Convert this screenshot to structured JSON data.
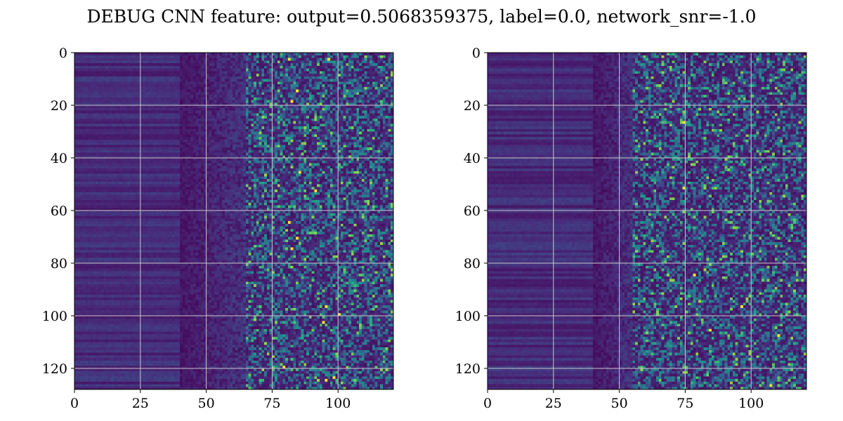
{
  "title": "DEBUG CNN feature: output=0.5068359375, label=0.0, network_snr=-1.0",
  "colors": {
    "background": "#ffffff",
    "text": "#000000",
    "axes_frame": "#000000",
    "grid": "#c8c8c8",
    "colormap": "viridis",
    "colormap_stops": [
      "#440154",
      "#482878",
      "#3e4989",
      "#31688e",
      "#26828e",
      "#1f9e89",
      "#35b779",
      "#6ece58",
      "#b5de2b",
      "#fde725"
    ]
  },
  "chart_data": [
    {
      "type": "heatmap",
      "panel": "left",
      "title": "",
      "xlabel": "",
      "ylabel": "",
      "xlim": [
        0,
        121
      ],
      "ylim": [
        128,
        0
      ],
      "grid": true,
      "xticks": [
        0,
        25,
        50,
        75,
        100
      ],
      "yticks": [
        0,
        20,
        40,
        60,
        80,
        100,
        120
      ],
      "rows": 128,
      "cols": 121,
      "colormap": "viridis",
      "value_range": [
        0,
        1
      ],
      "column_profile": [
        {
          "col_range": [
            0,
            40
          ],
          "level": "low, horizontal striped bands",
          "approx_value": 0.12
        },
        {
          "col_range": [
            40,
            65
          ],
          "level": "transition, mostly dark",
          "approx_value": 0.08
        },
        {
          "col_range": [
            65,
            121
          ],
          "level": "high-variance speckle with scattered teal/green/yellow peaks",
          "approx_value": 0.3
        }
      ],
      "peak_points": [
        {
          "x": 81,
          "y": 2
        },
        {
          "x": 96,
          "y": 2
        },
        {
          "x": 84,
          "y": 14
        },
        {
          "x": 82,
          "y": 18
        },
        {
          "x": 85,
          "y": 45
        },
        {
          "x": 91,
          "y": 52
        },
        {
          "x": 81,
          "y": 64
        },
        {
          "x": 84,
          "y": 70
        },
        {
          "x": 82,
          "y": 74
        },
        {
          "x": 95,
          "y": 96
        },
        {
          "x": 94,
          "y": 102
        },
        {
          "x": 79,
          "y": 119
        },
        {
          "x": 95,
          "y": 124
        },
        {
          "x": 98,
          "y": 123
        },
        {
          "x": 100,
          "y": 99
        }
      ]
    },
    {
      "type": "heatmap",
      "panel": "right",
      "title": "",
      "xlabel": "",
      "ylabel": "",
      "xlim": [
        0,
        121
      ],
      "ylim": [
        128,
        0
      ],
      "grid": true,
      "xticks": [
        0,
        25,
        50,
        75,
        100
      ],
      "yticks": [
        0,
        20,
        40,
        60,
        80,
        100,
        120
      ],
      "rows": 128,
      "cols": 121,
      "colormap": "viridis",
      "value_range": [
        0,
        1
      ],
      "column_profile": [
        {
          "col_range": [
            0,
            40
          ],
          "level": "low, horizontal striped bands",
          "approx_value": 0.12
        },
        {
          "col_range": [
            40,
            55
          ],
          "level": "transition, mostly dark",
          "approx_value": 0.08
        },
        {
          "col_range": [
            55,
            121
          ],
          "level": "speckle with scattered teal/green peaks",
          "approx_value": 0.25
        }
      ],
      "peak_points": [
        {
          "x": 74,
          "y": 51
        },
        {
          "x": 96,
          "y": 96
        },
        {
          "x": 84,
          "y": 105
        },
        {
          "x": 110,
          "y": 107
        },
        {
          "x": 107,
          "y": 126
        },
        {
          "x": 74,
          "y": 26
        },
        {
          "x": 78,
          "y": 84
        }
      ]
    }
  ]
}
